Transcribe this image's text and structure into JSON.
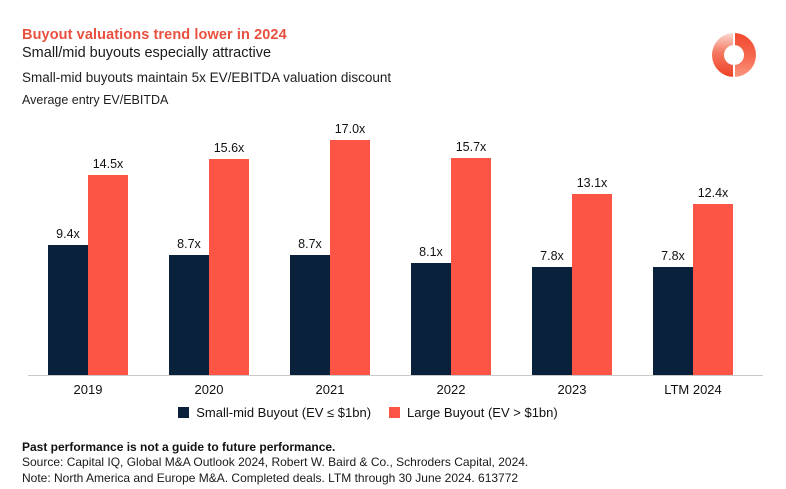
{
  "header": {
    "title": "Buyout valuations trend lower in 2024",
    "subtitle": "Small/mid buyouts especially attractive",
    "chart_heading": "Small-mid buyouts maintain 5x EV/EBITDA valuation discount",
    "axis_unit": "Average entry EV/EBITDA"
  },
  "colors": {
    "title_accent": "#E9503F",
    "small_mid_bar": "#0A213C",
    "large_bar": "#FC5445",
    "axis_line": "#C9C9C9",
    "logo_red_dark": "#EE4026",
    "logo_red_light": "#FBD9D1"
  },
  "chart_data": {
    "type": "bar",
    "title": "Small-mid buyouts maintain 5x EV/EBITDA valuation discount",
    "ylabel": "Average entry EV/EBITDA",
    "categories": [
      "2019",
      "2020",
      "2021",
      "2022",
      "2023",
      "LTM 2024"
    ],
    "series": [
      {
        "key": "small-mid",
        "name": "Small-mid Buyout (EV ≤ $1bn)",
        "color": "#0A213C",
        "values": [
          9.4,
          8.7,
          8.7,
          8.1,
          7.8,
          7.8
        ],
        "labels": [
          "9.4x",
          "8.7x",
          "8.7x",
          "8.1x",
          "7.8x",
          "7.8x"
        ]
      },
      {
        "key": "large",
        "name": "Large Buyout (EV > $1bn)",
        "color": "#FC5445",
        "values": [
          14.5,
          15.6,
          17.0,
          15.7,
          13.1,
          12.4
        ],
        "labels": [
          "14.5x",
          "15.6x",
          "17.0x",
          "15.7x",
          "13.1x",
          "12.4x"
        ]
      }
    ],
    "ylim": [
      0,
      18
    ],
    "grid": false,
    "legend_position": "bottom",
    "value_suffix": "x"
  },
  "footer": {
    "disclaimer": "Past performance is not a guide to future performance.",
    "source": "Source: Capital IQ, Global M&A Outlook 2024, Robert W. Baird & Co., Schroders Capital, 2024.",
    "note": "Note: North America and Europe M&A. Completed deals. LTM through 30 June 2024. 613772"
  }
}
